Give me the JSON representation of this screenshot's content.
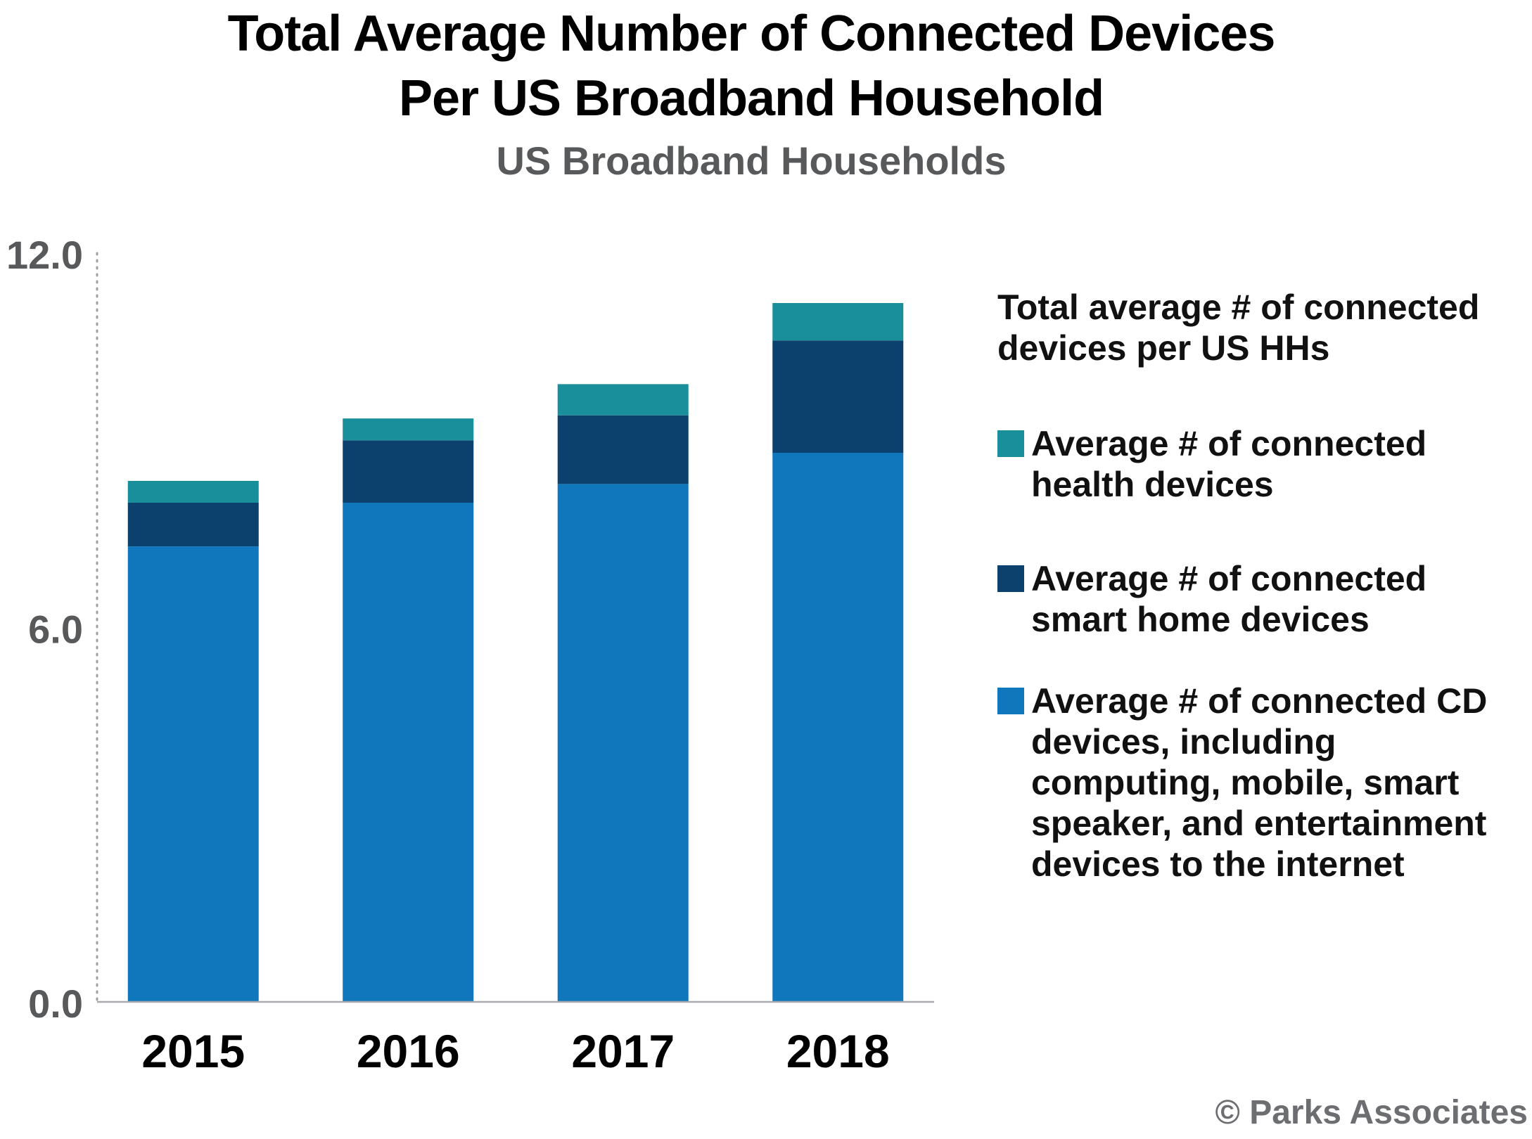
{
  "chart_data": {
    "type": "bar",
    "stacked": true,
    "title": "Total Average Number of Connected Devices Per US Broadband Household",
    "title_lines": [
      "Total Average Number of Connected Devices",
      "Per US Broadband Household"
    ],
    "subtitle": "US Broadband Households",
    "categories": [
      "2015",
      "2016",
      "2017",
      "2018"
    ],
    "series": [
      {
        "name": "Average # of connected CD devices, including computing, mobile, smart speaker, and entertainment devices to the internet",
        "color": "#1177bd",
        "values": [
          7.3,
          8.0,
          8.3,
          8.8
        ]
      },
      {
        "name": "Average # of connected smart home devices",
        "color": "#0c416e",
        "values": [
          0.7,
          1.0,
          1.1,
          1.8
        ]
      },
      {
        "name": "Average # of connected health devices",
        "color": "#188f9a",
        "values": [
          0.35,
          0.35,
          0.5,
          0.6
        ]
      }
    ],
    "ylim": [
      0,
      12
    ],
    "yticks": [
      "0.0",
      "6.0",
      "12.0"
    ],
    "legend_title": "Total average # of connected devices per US HHs",
    "xlabel": "",
    "ylabel": ""
  },
  "legend": {
    "title_lines": [
      "Total average # of connected",
      "devices per US HHs"
    ],
    "items": [
      {
        "lines": [
          "Average # of connected",
          "health devices"
        ],
        "color": "#188f9a"
      },
      {
        "lines": [
          "Average # of connected",
          "smart home devices"
        ],
        "color": "#0c416e"
      },
      {
        "lines": [
          "Average # of connected CD",
          "devices, including",
          "computing, mobile, smart",
          "speaker, and entertainment",
          "devices to the internet"
        ],
        "color": "#1177bd"
      }
    ]
  },
  "copyright": "© Parks Associates"
}
